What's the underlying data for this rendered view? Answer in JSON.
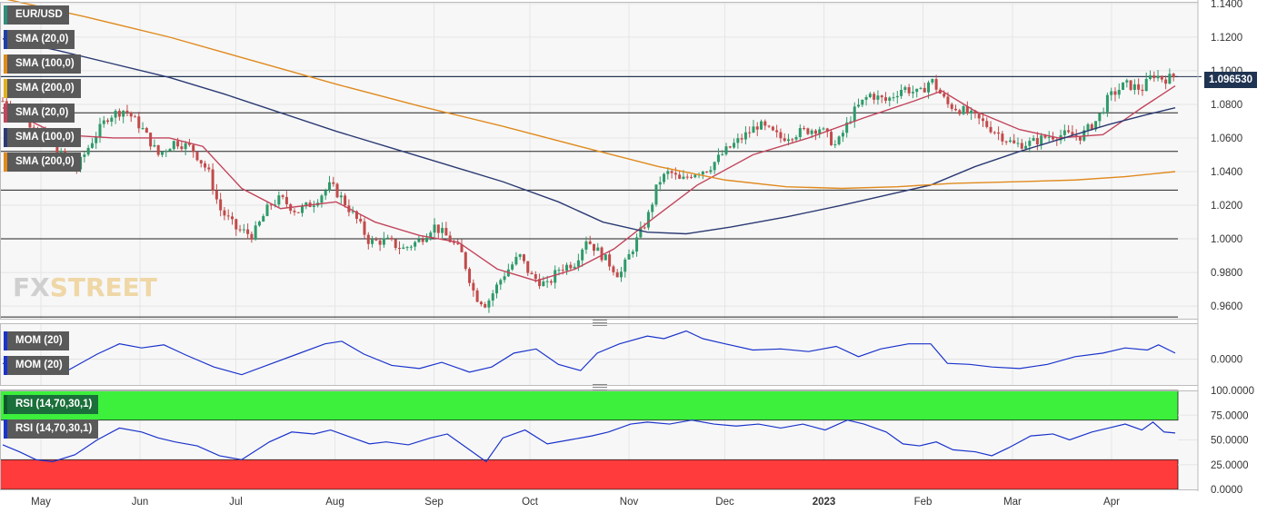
{
  "chart_data": {
    "type": "candlestick",
    "symbol": "EUR/USD",
    "price_axis": {
      "ticks": [
        "1.1400",
        "1.1200",
        "1.1000",
        "1.0800",
        "1.0600",
        "1.0400",
        "1.0200",
        "1.0000",
        "0.9800",
        "0.9600"
      ],
      "range": [
        0.9525,
        1.141
      ],
      "last_price": "1.096530",
      "last_price_value": 1.09653
    },
    "horizontal_levels": [
      1.0965,
      1.075,
      1.052,
      1.029,
      1.0,
      0.9535
    ],
    "x_labels": [
      "May",
      "Jun",
      "Jul",
      "Aug",
      "Sep",
      "Oct",
      "Nov",
      "Dec",
      "2023",
      "Feb",
      "Mar",
      "Apr"
    ],
    "x_label_days": [
      9,
      40,
      70,
      101,
      132,
      162,
      193,
      223,
      254,
      285,
      313,
      344
    ],
    "day_range": [
      0,
      398
    ],
    "price_path": [
      [
        0,
        1.082
      ],
      [
        8,
        1.071
      ],
      [
        14,
        1.064
      ],
      [
        20,
        1.052
      ],
      [
        26,
        1.04
      ],
      [
        32,
        1.058
      ],
      [
        38,
        1.073
      ],
      [
        44,
        1.077
      ],
      [
        50,
        1.066
      ],
      [
        56,
        1.05
      ],
      [
        62,
        1.058
      ],
      [
        68,
        1.054
      ],
      [
        74,
        1.04
      ],
      [
        78,
        1.018
      ],
      [
        84,
        1.006
      ],
      [
        90,
        1.002
      ],
      [
        96,
        1.02
      ],
      [
        100,
        1.024
      ],
      [
        106,
        1.016
      ],
      [
        112,
        1.022
      ],
      [
        118,
        1.032
      ],
      [
        122,
        1.024
      ],
      [
        128,
        1.01
      ],
      [
        132,
        0.998
      ],
      [
        138,
        0.999
      ],
      [
        144,
        0.994
      ],
      [
        150,
        0.999
      ],
      [
        155,
        1.008
      ],
      [
        160,
        1.001
      ],
      [
        165,
        0.992
      ],
      [
        170,
        0.966
      ],
      [
        174,
        0.961
      ],
      [
        180,
        0.978
      ],
      [
        186,
        0.99
      ],
      [
        190,
        0.978
      ],
      [
        196,
        0.972
      ],
      [
        200,
        0.982
      ],
      [
        206,
        0.986
      ],
      [
        210,
        1.0
      ],
      [
        214,
        0.993
      ],
      [
        218,
        0.986
      ],
      [
        222,
        0.978
      ],
      [
        226,
        0.992
      ],
      [
        232,
        1.012
      ],
      [
        236,
        1.034
      ],
      [
        240,
        1.04
      ],
      [
        244,
        1.034
      ],
      [
        248,
        1.039
      ],
      [
        254,
        1.042
      ],
      [
        260,
        1.052
      ],
      [
        266,
        1.06
      ],
      [
        272,
        1.068
      ],
      [
        280,
        1.06
      ],
      [
        288,
        1.064
      ],
      [
        294,
        1.066
      ],
      [
        300,
        1.055
      ],
      [
        306,
        1.075
      ],
      [
        312,
        1.086
      ],
      [
        318,
        1.082
      ],
      [
        324,
        1.09
      ],
      [
        330,
        1.086
      ],
      [
        334,
        1.095
      ],
      [
        336,
        1.09
      ],
      [
        340,
        1.08
      ],
      [
        346,
        1.076
      ],
      [
        352,
        1.07
      ],
      [
        358,
        1.063
      ],
      [
        364,
        1.056
      ],
      [
        370,
        1.057
      ],
      [
        376,
        1.061
      ],
      [
        382,
        1.062
      ],
      [
        388,
        1.061
      ],
      [
        394,
        1.071
      ],
      [
        398,
        1.084
      ],
      [
        404,
        1.092
      ],
      [
        410,
        1.089
      ],
      [
        414,
        1.098
      ],
      [
        418,
        1.095
      ],
      [
        422,
        1.0965
      ]
    ],
    "series": [
      {
        "name": "SMA (20,0)",
        "color": "#c2455c",
        "points": [
          [
            0,
            1.078
          ],
          [
            20,
            1.062
          ],
          [
            40,
            1.06
          ],
          [
            60,
            1.06
          ],
          [
            72,
            1.055
          ],
          [
            86,
            1.03
          ],
          [
            100,
            1.018
          ],
          [
            120,
            1.022
          ],
          [
            134,
            1.01
          ],
          [
            150,
            1.002
          ],
          [
            164,
            0.998
          ],
          [
            178,
            0.982
          ],
          [
            192,
            0.975
          ],
          [
            206,
            0.982
          ],
          [
            220,
            0.994
          ],
          [
            234,
            1.012
          ],
          [
            250,
            1.032
          ],
          [
            270,
            1.05
          ],
          [
            290,
            1.06
          ],
          [
            310,
            1.072
          ],
          [
            328,
            1.082
          ],
          [
            338,
            1.088
          ],
          [
            350,
            1.076
          ],
          [
            366,
            1.065
          ],
          [
            380,
            1.06
          ],
          [
            396,
            1.062
          ],
          [
            410,
            1.078
          ],
          [
            422,
            1.091
          ]
        ]
      },
      {
        "name": "SMA (100,0)",
        "color": "#2b3a73",
        "points": [
          [
            0,
            1.119
          ],
          [
            20,
            1.112
          ],
          [
            40,
            1.104
          ],
          [
            60,
            1.096
          ],
          [
            80,
            1.086
          ],
          [
            100,
            1.075
          ],
          [
            120,
            1.064
          ],
          [
            140,
            1.054
          ],
          [
            160,
            1.044
          ],
          [
            180,
            1.034
          ],
          [
            200,
            1.022
          ],
          [
            216,
            1.01
          ],
          [
            232,
            1.004
          ],
          [
            246,
            1.003
          ],
          [
            262,
            1.007
          ],
          [
            282,
            1.013
          ],
          [
            302,
            1.02
          ],
          [
            318,
            1.026
          ],
          [
            334,
            1.032
          ],
          [
            350,
            1.043
          ],
          [
            366,
            1.052
          ],
          [
            382,
            1.06
          ],
          [
            398,
            1.068
          ],
          [
            412,
            1.074
          ],
          [
            422,
            1.078
          ]
        ]
      },
      {
        "name": "SMA (200,0)",
        "color": "#e08a1e",
        "points": [
          [
            0,
            1.143
          ],
          [
            30,
            1.132
          ],
          [
            60,
            1.12
          ],
          [
            90,
            1.106
          ],
          [
            120,
            1.092
          ],
          [
            150,
            1.079
          ],
          [
            180,
            1.067
          ],
          [
            210,
            1.054
          ],
          [
            236,
            1.043
          ],
          [
            260,
            1.035
          ],
          [
            282,
            1.031
          ],
          [
            302,
            1.03
          ],
          [
            322,
            1.031
          ],
          [
            342,
            1.033
          ],
          [
            366,
            1.034
          ],
          [
            386,
            1.035
          ],
          [
            404,
            1.037
          ],
          [
            422,
            1.04
          ]
        ]
      }
    ],
    "momentum": {
      "name": "MOM (20)",
      "ticks": [
        "0.0000"
      ],
      "color": "#1a33cc",
      "points": [
        [
          0,
          -0.008
        ],
        [
          8,
          -0.018
        ],
        [
          16,
          -0.01
        ],
        [
          24,
          -0.02
        ],
        [
          34,
          0.01
        ],
        [
          42,
          0.03
        ],
        [
          50,
          0.022
        ],
        [
          58,
          0.028
        ],
        [
          66,
          0.008
        ],
        [
          76,
          -0.015
        ],
        [
          86,
          -0.03
        ],
        [
          96,
          -0.01
        ],
        [
          106,
          0.01
        ],
        [
          116,
          0.03
        ],
        [
          122,
          0.035
        ],
        [
          130,
          0.01
        ],
        [
          140,
          -0.012
        ],
        [
          150,
          -0.018
        ],
        [
          158,
          -0.006
        ],
        [
          168,
          -0.025
        ],
        [
          176,
          -0.015
        ],
        [
          184,
          0.012
        ],
        [
          192,
          0.02
        ],
        [
          200,
          -0.01
        ],
        [
          208,
          -0.022
        ],
        [
          214,
          0.012
        ],
        [
          222,
          0.03
        ],
        [
          232,
          0.045
        ],
        [
          238,
          0.04
        ],
        [
          246,
          0.055
        ],
        [
          252,
          0.04
        ],
        [
          260,
          0.03
        ],
        [
          270,
          0.018
        ],
        [
          280,
          0.02
        ],
        [
          290,
          0.015
        ],
        [
          300,
          0.025
        ],
        [
          308,
          0.005
        ],
        [
          316,
          0.02
        ],
        [
          326,
          0.03
        ],
        [
          334,
          0.03
        ],
        [
          340,
          -0.008
        ],
        [
          348,
          -0.01
        ],
        [
          356,
          -0.015
        ],
        [
          366,
          -0.018
        ],
        [
          376,
          -0.01
        ],
        [
          386,
          0.005
        ],
        [
          396,
          0.012
        ],
        [
          404,
          0.022
        ],
        [
          412,
          0.018
        ],
        [
          416,
          0.028
        ],
        [
          422,
          0.012
        ]
      ]
    },
    "rsi": {
      "name": "RSI (14,70,30,1)",
      "ticks": [
        "100.0000",
        "75.0000",
        "50.0000",
        "25.0000",
        "0.0000"
      ],
      "levels": [
        70,
        30
      ],
      "overbought_color": "#3cf03c",
      "oversold_color": "#ff3b3b",
      "color": "#1a33cc",
      "points": [
        [
          0,
          45
        ],
        [
          6,
          38
        ],
        [
          12,
          30
        ],
        [
          18,
          28
        ],
        [
          26,
          35
        ],
        [
          34,
          50
        ],
        [
          42,
          62
        ],
        [
          50,
          58
        ],
        [
          56,
          52
        ],
        [
          62,
          48
        ],
        [
          70,
          44
        ],
        [
          78,
          34
        ],
        [
          86,
          30
        ],
        [
          96,
          48
        ],
        [
          104,
          58
        ],
        [
          112,
          56
        ],
        [
          118,
          60
        ],
        [
          124,
          54
        ],
        [
          132,
          46
        ],
        [
          138,
          48
        ],
        [
          146,
          45
        ],
        [
          154,
          52
        ],
        [
          160,
          56
        ],
        [
          168,
          40
        ],
        [
          174,
          28
        ],
        [
          180,
          52
        ],
        [
          188,
          60
        ],
        [
          196,
          46
        ],
        [
          204,
          50
        ],
        [
          212,
          54
        ],
        [
          218,
          58
        ],
        [
          226,
          66
        ],
        [
          232,
          68
        ],
        [
          240,
          66
        ],
        [
          248,
          70
        ],
        [
          256,
          66
        ],
        [
          264,
          64
        ],
        [
          272,
          66
        ],
        [
          280,
          62
        ],
        [
          288,
          66
        ],
        [
          296,
          60
        ],
        [
          304,
          70
        ],
        [
          310,
          66
        ],
        [
          318,
          58
        ],
        [
          324,
          46
        ],
        [
          330,
          44
        ],
        [
          336,
          48
        ],
        [
          342,
          40
        ],
        [
          350,
          38
        ],
        [
          356,
          34
        ],
        [
          362,
          42
        ],
        [
          370,
          54
        ],
        [
          378,
          56
        ],
        [
          384,
          50
        ],
        [
          392,
          58
        ],
        [
          398,
          62
        ],
        [
          404,
          66
        ],
        [
          410,
          60
        ],
        [
          414,
          68
        ],
        [
          418,
          58
        ],
        [
          422,
          57
        ]
      ]
    }
  },
  "legends": {
    "symbol": "EUR/USD",
    "sma20": "SMA (20,0)",
    "sma100": "SMA (100,0)",
    "sma200": "SMA (200,0)",
    "sma20_b": "SMA (20,0)",
    "sma100_b": "SMA (100,0)",
    "sma200_b": "SMA (200,0)",
    "mom_a": "MOM (20)",
    "mom_b": "MOM (20)",
    "rsi_a": "RSI (14,70,30,1)",
    "rsi_b": "RSI (14,70,30,1)"
  },
  "logo": {
    "part1": "FX",
    "part2": "STREET"
  },
  "colors": {
    "bull": "#2e9a6a",
    "bear": "#c24a4a",
    "axis_text": "#333333"
  }
}
